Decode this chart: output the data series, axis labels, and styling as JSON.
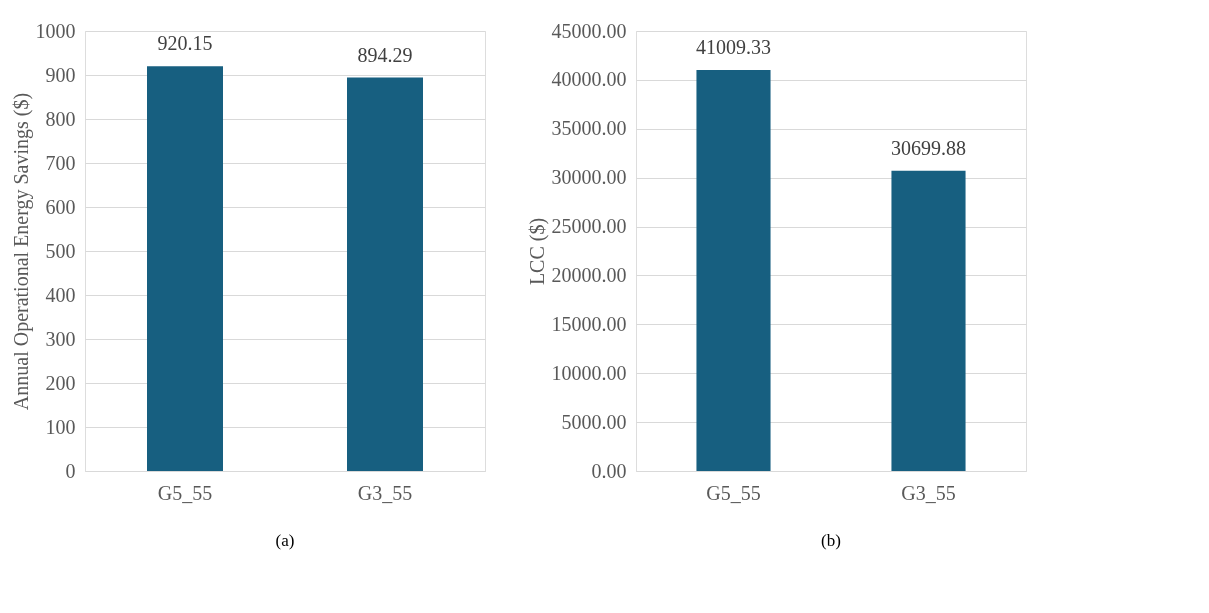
{
  "chart_data": [
    {
      "type": "bar",
      "ylabel": "Annual Operational Energy Savings ($)",
      "categories": [
        "G5_55",
        "G3_55"
      ],
      "values": [
        920.15,
        894.29
      ],
      "color": "#175f80",
      "ylim": [
        0,
        1000
      ],
      "yticks": [
        0,
        100,
        200,
        300,
        400,
        500,
        600,
        700,
        800,
        900,
        1000
      ],
      "grid": "y",
      "data_labels": true,
      "annotations": [
        "(a)"
      ]
    },
    {
      "type": "bar",
      "ylabel": "LCC ($)",
      "categories": [
        "G5_55",
        "G3_55"
      ],
      "values": [
        41009.33,
        30699.88
      ],
      "color": "#175f80",
      "ylim": [
        0,
        45000
      ],
      "yticks": [
        {
          "value": 0,
          "label": "0.00"
        },
        {
          "value": 5000,
          "label": "5000.00"
        },
        {
          "value": 10000,
          "label": "10000.00"
        },
        {
          "value": 15000,
          "label": "15000.00"
        },
        {
          "value": 20000,
          "label": "20000.00"
        },
        {
          "value": 25000,
          "label": "25000.00"
        },
        {
          "value": 30000,
          "label": "30000.00"
        },
        {
          "value": 35000,
          "label": "35000.00"
        },
        {
          "value": 40000,
          "label": "40000.00"
        },
        {
          "value": 45000,
          "label": "45000.00"
        }
      ],
      "grid": "y",
      "data_labels": true,
      "annotations": [
        "(b)"
      ]
    }
  ]
}
